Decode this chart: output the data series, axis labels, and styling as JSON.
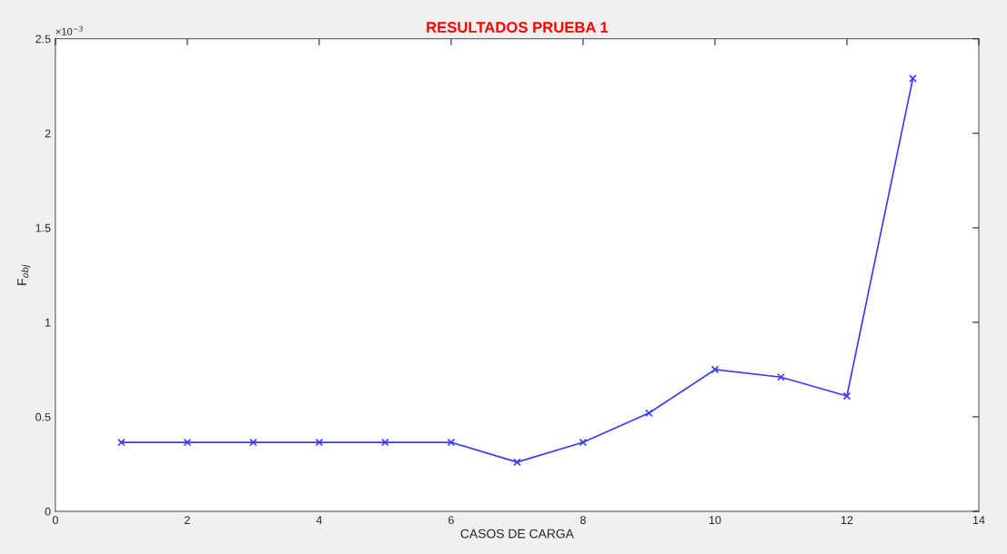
{
  "chart_data": {
    "type": "line",
    "title": "RESULTADOS PRUEBA 1",
    "xlabel": "CASOS DE CARGA",
    "ylabel": "F$_{obj}$",
    "annotations": [
      "×10$^{−3}$"
    ],
    "x": [
      1,
      2,
      3,
      4,
      5,
      6,
      7,
      8,
      9,
      10,
      11,
      12,
      13
    ],
    "series": [
      {
        "color": "#3a3aff",
        "values": [
          0.365,
          0.365,
          0.365,
          0.365,
          0.365,
          0.365,
          0.26,
          0.365,
          0.52,
          0.75,
          0.71,
          0.61,
          2.29
        ]
      }
    ],
    "xlim": [
      0,
      14
    ],
    "xticks": [
      0,
      2,
      4,
      6,
      8,
      10,
      12,
      14
    ],
    "ylim": [
      0,
      2.5
    ],
    "yticks": [
      0,
      0.5,
      1,
      1.5,
      2,
      2.5
    ],
    "marker": "cross",
    "line_style": "solid",
    "grid": false,
    "legend": false
  }
}
